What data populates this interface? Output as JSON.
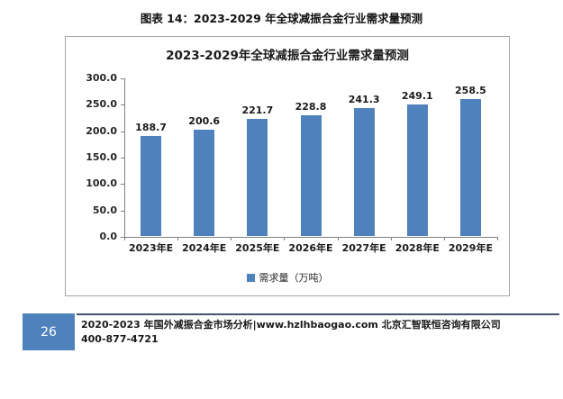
{
  "page": {
    "figure_caption": "图表 14：2023-2029 年全球减振合金行业需求量预测"
  },
  "chart_data": {
    "type": "bar",
    "title": "2023-2029年全球减振合金行业需求量预测",
    "categories": [
      "2023年E",
      "2024年E",
      "2025年E",
      "2026年E",
      "2027年E",
      "2028年E",
      "2029年E"
    ],
    "values": [
      188.7,
      200.6,
      221.7,
      228.8,
      241.3,
      249.1,
      258.5
    ],
    "series_name": "需求量（万吨）",
    "xlabel": "",
    "ylabel": "",
    "ylim": [
      0,
      300
    ],
    "ytick_step": 50,
    "ytick_decimals": 1,
    "grid": false,
    "legend_position": "bottom",
    "bar_color": "#4f81bd",
    "axis_color": "#808080"
  },
  "footer": {
    "page_number": "26",
    "line1": "2020-2023 年国外减振合金市场分析|www.hzlhbaogao.com 北京汇智联恒咨询有限公司",
    "line2": "400-877-4721",
    "accent_color": "#4f81bd"
  }
}
